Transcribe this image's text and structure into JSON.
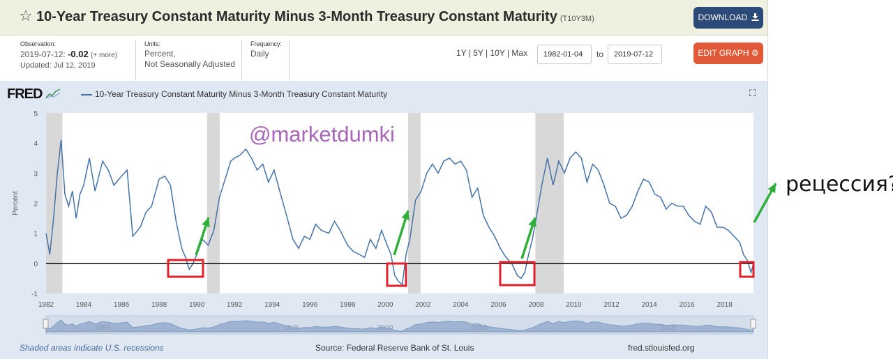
{
  "header": {
    "title": "10-Year Treasury Constant Maturity Minus 3-Month Treasury Constant Maturity",
    "series_id": "(T10Y3M)",
    "download_label": "DOWNLOAD",
    "edit_graph_label": "EDIT GRAPH"
  },
  "meta": {
    "observation_label": "Observation:",
    "observation_date": "2019-07-12:",
    "observation_value": "-0.02",
    "observation_more": "(+ more)",
    "updated": "Updated: Jul 12, 2019",
    "units_label": "Units:",
    "units_line1": "Percent,",
    "units_line2": "Not Seasonally Adjusted",
    "frequency_label": "Frequency:",
    "frequency_value": "Daily"
  },
  "range": {
    "links": "1Y | 5Y | 10Y | Max",
    "start": "1982-01-04",
    "to_label": "to",
    "end": "2019-07-12"
  },
  "graph": {
    "logo": "FRED",
    "legend": "10-Year Treasury Constant Maturity Minus 3-Month Treasury Constant Maturity",
    "watermark": "@marketdumki",
    "annotation": "рецессия?",
    "footer_recessions": "Shaded areas indicate U.S. recessions",
    "footer_source": "Source: Federal Reserve Bank of St. Louis",
    "footer_url": "fred.stlouisfed.org",
    "navigator_labels": [
      "1985",
      "1995",
      "2000",
      "2005",
      "2015"
    ]
  },
  "colors": {
    "line": "#4572a7",
    "recession": "#d8d8d8",
    "highlight_box": "#e0202a",
    "arrow": "#2eb038"
  },
  "icons": [
    "star-icon",
    "download-icon",
    "gear-icon",
    "fullscreen-icon"
  ],
  "chart_data": {
    "type": "line",
    "title": "10-Year Treasury Constant Maturity Minus 3-Month Treasury Constant Maturity",
    "ylabel": "Percent",
    "xlabel": "",
    "ylim": [
      -1,
      5
    ],
    "xlim": [
      1982.0,
      2019.53
    ],
    "yticks": [
      -1,
      0,
      1,
      2,
      3,
      4,
      5
    ],
    "xticks": [
      1982,
      1984,
      1986,
      1988,
      1990,
      1992,
      1994,
      1996,
      1998,
      2000,
      2002,
      2004,
      2006,
      2008,
      2010,
      2012,
      2014,
      2016,
      2018
    ],
    "grid": false,
    "legend_position": "top-left",
    "recessions": [
      [
        1982.0,
        1982.87
      ],
      [
        1990.54,
        1991.21
      ],
      [
        2001.21,
        2001.87
      ],
      [
        2007.96,
        2009.46
      ]
    ],
    "zero_line": 0,
    "series": [
      {
        "name": "10-Year Treasury Constant Maturity Minus 3-Month Treasury Constant Maturity",
        "x": [
          1982.0,
          1982.2,
          1982.4,
          1982.6,
          1982.8,
          1983.0,
          1983.2,
          1983.4,
          1983.6,
          1983.8,
          1984.0,
          1984.3,
          1984.6,
          1985.0,
          1985.3,
          1985.6,
          1986.0,
          1986.3,
          1986.6,
          1987.0,
          1987.3,
          1987.6,
          1988.0,
          1988.3,
          1988.6,
          1988.9,
          1989.2,
          1989.4,
          1989.6,
          1989.8,
          1990.0,
          1990.3,
          1990.6,
          1990.9,
          1991.2,
          1991.5,
          1991.8,
          1992.0,
          1992.3,
          1992.6,
          1992.9,
          1993.2,
          1993.5,
          1993.8,
          1994.1,
          1994.4,
          1994.8,
          1995.1,
          1995.4,
          1995.7,
          1996.0,
          1996.3,
          1996.6,
          1997.0,
          1997.3,
          1997.6,
          1998.0,
          1998.3,
          1998.6,
          1998.9,
          1999.2,
          1999.5,
          1999.8,
          2000.1,
          2000.3,
          2000.5,
          2000.7,
          2000.9,
          2001.1,
          2001.3,
          2001.6,
          2001.9,
          2002.2,
          2002.5,
          2002.8,
          2003.1,
          2003.4,
          2003.7,
          2004.0,
          2004.3,
          2004.6,
          2004.9,
          2005.2,
          2005.5,
          2005.8,
          2006.1,
          2006.4,
          2006.7,
          2007.0,
          2007.2,
          2007.4,
          2007.6,
          2007.8,
          2008.0,
          2008.3,
          2008.6,
          2008.9,
          2009.2,
          2009.5,
          2009.8,
          2010.1,
          2010.4,
          2010.7,
          2011.0,
          2011.3,
          2011.6,
          2011.9,
          2012.2,
          2012.5,
          2012.8,
          2013.1,
          2013.4,
          2013.7,
          2014.0,
          2014.3,
          2014.6,
          2014.9,
          2015.2,
          2015.5,
          2015.8,
          2016.1,
          2016.4,
          2016.7,
          2017.0,
          2017.3,
          2017.6,
          2017.9,
          2018.2,
          2018.5,
          2018.8,
          2019.0,
          2019.2,
          2019.4,
          2019.53
        ],
        "y": [
          1.0,
          0.3,
          1.5,
          3.0,
          4.1,
          2.3,
          1.9,
          2.4,
          1.5,
          2.3,
          2.6,
          3.5,
          2.4,
          3.4,
          3.1,
          2.6,
          2.9,
          3.1,
          0.9,
          1.2,
          1.7,
          1.9,
          2.8,
          2.9,
          2.6,
          1.4,
          0.5,
          0.2,
          -0.2,
          0.0,
          0.3,
          0.8,
          0.6,
          1.1,
          2.2,
          2.8,
          3.4,
          3.5,
          3.6,
          3.8,
          3.5,
          3.1,
          3.3,
          2.7,
          3.1,
          2.4,
          1.5,
          0.8,
          0.5,
          0.9,
          0.8,
          1.3,
          1.1,
          1.0,
          1.4,
          1.1,
          0.6,
          0.4,
          0.3,
          0.2,
          0.8,
          0.5,
          1.1,
          0.6,
          0.3,
          -0.4,
          -0.6,
          -0.7,
          0.3,
          0.8,
          2.1,
          2.4,
          3.0,
          3.3,
          3.0,
          3.4,
          3.5,
          3.3,
          3.4,
          3.1,
          2.2,
          2.5,
          1.6,
          1.2,
          0.9,
          0.5,
          0.2,
          0.0,
          -0.4,
          -0.5,
          -0.3,
          0.3,
          0.8,
          1.5,
          2.6,
          3.5,
          2.6,
          3.4,
          3.0,
          3.5,
          3.7,
          3.5,
          2.7,
          3.3,
          3.1,
          2.6,
          2.0,
          1.9,
          1.5,
          1.6,
          1.9,
          2.4,
          2.8,
          2.7,
          2.3,
          2.2,
          1.8,
          2.0,
          1.9,
          1.9,
          1.6,
          1.4,
          1.3,
          1.9,
          1.7,
          1.2,
          1.2,
          1.1,
          0.9,
          0.7,
          0.3,
          0.1,
          -0.3,
          -0.02
        ]
      }
    ]
  }
}
